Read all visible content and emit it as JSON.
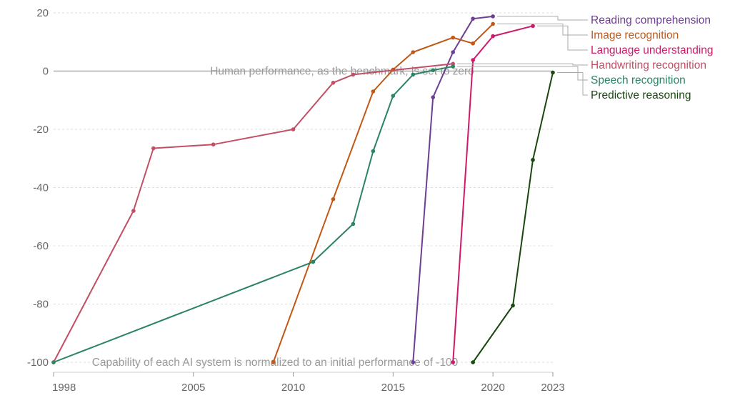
{
  "chart_data": {
    "type": "line",
    "title": "",
    "xlabel": "",
    "ylabel": "",
    "xlim": [
      1998,
      2023
    ],
    "ylim": [
      -100,
      20
    ],
    "y_ticks": [
      20,
      0,
      -20,
      -40,
      -60,
      -80,
      -100
    ],
    "x_ticks": [
      1998,
      2005,
      2010,
      2015,
      2020,
      2023
    ],
    "grid": true,
    "legend_placement": "right",
    "annotations": {
      "zero": "Human performance, as the benchmark, is set to zero",
      "bottom": "Capability of each AI system is normalized to an initial performance of -100"
    },
    "series": [
      {
        "name": "Reading comprehension",
        "color": "#6d3e91",
        "points": [
          [
            2016,
            -100
          ],
          [
            2017,
            -9
          ],
          [
            2018,
            6.5
          ],
          [
            2019,
            18
          ],
          [
            2020,
            18.8
          ]
        ]
      },
      {
        "name": "Image recognition",
        "color": "#c05917",
        "points": [
          [
            2009,
            -100
          ],
          [
            2012,
            -44
          ],
          [
            2014,
            -7
          ],
          [
            2015,
            0.5
          ],
          [
            2016,
            6.5
          ],
          [
            2018,
            11.5
          ],
          [
            2019,
            9.5
          ],
          [
            2020,
            16.2
          ]
        ]
      },
      {
        "name": "Language understanding",
        "color": "#ce1a6a",
        "points": [
          [
            2018,
            -100
          ],
          [
            2019,
            3.8
          ],
          [
            2020,
            12
          ],
          [
            2022,
            15.5
          ]
        ]
      },
      {
        "name": "Handwriting recognition",
        "color": "#c15065",
        "points": [
          [
            1998,
            -100
          ],
          [
            2002,
            -48
          ],
          [
            2003,
            -26.5
          ],
          [
            2006,
            -25.2
          ],
          [
            2010,
            -20
          ],
          [
            2012,
            -4
          ],
          [
            2013,
            -1.2
          ],
          [
            2018,
            2.5
          ]
        ]
      },
      {
        "name": "Speech recognition",
        "color": "#2c8465",
        "points": [
          [
            1998,
            -100
          ],
          [
            2011,
            -65.5
          ],
          [
            2013,
            -52.5
          ],
          [
            2014,
            -27.5
          ],
          [
            2015,
            -8.5
          ],
          [
            2016,
            -1.2
          ],
          [
            2017,
            0.3
          ],
          [
            2018,
            1.6
          ]
        ]
      },
      {
        "name": "Predictive reasoning",
        "color": "#18470f",
        "points": [
          [
            2019,
            -100
          ],
          [
            2021,
            -80.5
          ],
          [
            2022,
            -30.5
          ],
          [
            2023,
            -0.5
          ]
        ]
      }
    ]
  }
}
